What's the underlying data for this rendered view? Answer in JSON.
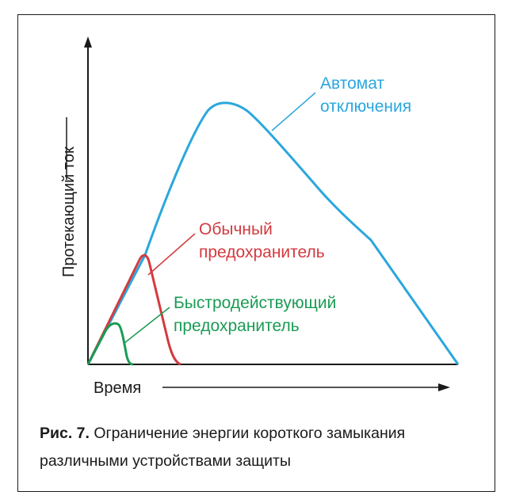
{
  "diagram": {
    "y_axis_label": "Протекающий ток",
    "x_axis_label": "Время",
    "curves": {
      "breaker": {
        "label_line1": "Автомат",
        "label_line2": "отключения",
        "color": "#2aa7dd"
      },
      "fuse": {
        "label_line1": "Обычный",
        "label_line2": "предохранитель",
        "color": "#d43a3f"
      },
      "fast_fuse": {
        "label_line1": "Быстродействующий",
        "label_line2": "предохранитель",
        "color": "#1a9b55"
      }
    }
  },
  "caption": {
    "number": "Рис. 7.",
    "text": "Ограничение энергии короткого замыкания различными устройствами защиты"
  }
}
